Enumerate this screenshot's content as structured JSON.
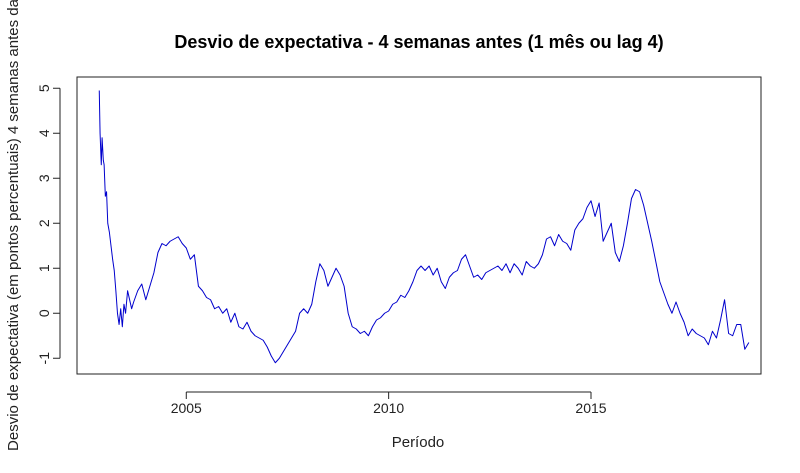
{
  "chart_data": {
    "type": "line",
    "title": "Desvio de expectativa - 4 semanas antes (1 mês ou lag 4)",
    "xlabel": "Período",
    "ylabel": "Desvio de expectativa (em pontos percentuais) 4 semanas antes da",
    "xlim": [
      2002.3,
      2019.2
    ],
    "ylim": [
      -1.35,
      5.25
    ],
    "x_ticks": [
      2005,
      2010,
      2015
    ],
    "y_ticks": [
      -1,
      0,
      1,
      2,
      3,
      4,
      5
    ],
    "grid": false,
    "legend": "none",
    "series": [
      {
        "color": "#0000cd",
        "x": [
          2002.85,
          2002.87,
          2002.9,
          2002.92,
          2002.95,
          2002.97,
          2003.0,
          2003.03,
          2003.06,
          2003.1,
          2003.14,
          2003.18,
          2003.22,
          2003.26,
          2003.3,
          2003.34,
          2003.38,
          2003.42,
          2003.46,
          2003.5,
          2003.55,
          2003.6,
          2003.65,
          2003.7,
          2003.8,
          2003.9,
          2004.0,
          2004.1,
          2004.2,
          2004.3,
          2004.4,
          2004.5,
          2004.6,
          2004.7,
          2004.8,
          2004.9,
          2005.0,
          2005.1,
          2005.2,
          2005.3,
          2005.4,
          2005.5,
          2005.6,
          2005.7,
          2005.8,
          2005.9,
          2006.0,
          2006.1,
          2006.2,
          2006.3,
          2006.4,
          2006.5,
          2006.6,
          2006.7,
          2006.8,
          2006.9,
          2007.0,
          2007.1,
          2007.2,
          2007.3,
          2007.4,
          2007.5,
          2007.6,
          2007.7,
          2007.8,
          2007.9,
          2008.0,
          2008.1,
          2008.2,
          2008.3,
          2008.4,
          2008.5,
          2008.6,
          2008.7,
          2008.8,
          2008.9,
          2009.0,
          2009.1,
          2009.2,
          2009.3,
          2009.4,
          2009.5,
          2009.6,
          2009.7,
          2009.8,
          2009.9,
          2010.0,
          2010.1,
          2010.2,
          2010.3,
          2010.4,
          2010.5,
          2010.6,
          2010.7,
          2010.8,
          2010.9,
          2011.0,
          2011.1,
          2011.2,
          2011.3,
          2011.4,
          2011.5,
          2011.6,
          2011.7,
          2011.8,
          2011.9,
          2012.0,
          2012.1,
          2012.2,
          2012.3,
          2012.4,
          2012.5,
          2012.6,
          2012.7,
          2012.8,
          2012.9,
          2013.0,
          2013.1,
          2013.2,
          2013.3,
          2013.4,
          2013.5,
          2013.6,
          2013.7,
          2013.8,
          2013.9,
          2014.0,
          2014.1,
          2014.2,
          2014.3,
          2014.4,
          2014.5,
          2014.6,
          2014.7,
          2014.8,
          2014.9,
          2015.0,
          2015.1,
          2015.2,
          2015.3,
          2015.4,
          2015.5,
          2015.6,
          2015.7,
          2015.8,
          2015.9,
          2016.0,
          2016.1,
          2016.2,
          2016.3,
          2016.4,
          2016.5,
          2016.6,
          2016.7,
          2016.8,
          2016.9,
          2017.0,
          2017.1,
          2017.2,
          2017.3,
          2017.4,
          2017.5,
          2017.6,
          2017.7,
          2017.8,
          2017.9,
          2018.0,
          2018.1,
          2018.2,
          2018.3,
          2018.4,
          2018.5,
          2018.6,
          2018.7,
          2018.8,
          2018.9
        ],
        "y": [
          4.95,
          4.0,
          3.3,
          3.9,
          3.4,
          3.3,
          2.6,
          2.7,
          2.0,
          1.8,
          1.5,
          1.2,
          0.95,
          0.5,
          0.0,
          -0.25,
          0.1,
          -0.3,
          0.2,
          0.0,
          0.5,
          0.3,
          0.1,
          0.25,
          0.5,
          0.65,
          0.3,
          0.6,
          0.9,
          1.35,
          1.55,
          1.5,
          1.6,
          1.65,
          1.7,
          1.55,
          1.45,
          1.2,
          1.3,
          0.6,
          0.5,
          0.35,
          0.3,
          0.1,
          0.15,
          0.0,
          0.1,
          -0.2,
          0.0,
          -0.3,
          -0.35,
          -0.2,
          -0.4,
          -0.5,
          -0.55,
          -0.6,
          -0.75,
          -0.95,
          -1.1,
          -1.0,
          -0.85,
          -0.7,
          -0.55,
          -0.4,
          0.0,
          0.1,
          0.0,
          0.2,
          0.7,
          1.1,
          0.95,
          0.6,
          0.8,
          1.0,
          0.85,
          0.6,
          0.0,
          -0.3,
          -0.35,
          -0.45,
          -0.4,
          -0.5,
          -0.3,
          -0.15,
          -0.1,
          0.0,
          0.05,
          0.2,
          0.25,
          0.4,
          0.35,
          0.5,
          0.7,
          0.95,
          1.05,
          0.95,
          1.05,
          0.85,
          1.0,
          0.7,
          0.55,
          0.8,
          0.9,
          0.95,
          1.2,
          1.3,
          1.05,
          0.8,
          0.85,
          0.75,
          0.9,
          0.95,
          1.0,
          1.05,
          0.95,
          1.1,
          0.9,
          1.1,
          1.0,
          0.85,
          1.15,
          1.05,
          1.0,
          1.1,
          1.3,
          1.65,
          1.7,
          1.5,
          1.75,
          1.6,
          1.55,
          1.4,
          1.85,
          2.0,
          2.1,
          2.35,
          2.5,
          2.15,
          2.45,
          1.6,
          1.8,
          2.0,
          1.35,
          1.15,
          1.5,
          2.0,
          2.55,
          2.75,
          2.7,
          2.4,
          2.0,
          1.6,
          1.15,
          0.7,
          0.45,
          0.2,
          0.0,
          0.25,
          0.0,
          -0.2,
          -0.5,
          -0.35,
          -0.45,
          -0.5,
          -0.55,
          -0.7,
          -0.4,
          -0.55,
          -0.15,
          0.3,
          -0.45,
          -0.5,
          -0.25,
          -0.25,
          -0.8,
          -0.65
        ]
      }
    ]
  }
}
